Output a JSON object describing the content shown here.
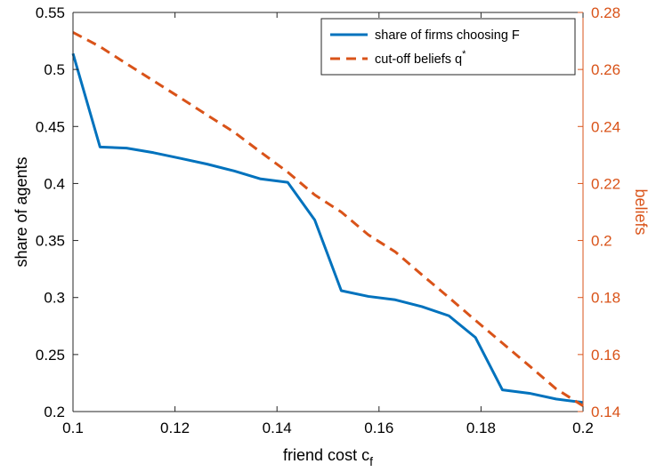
{
  "chart_data": {
    "type": "line",
    "x": [
      0.1,
      0.1053,
      0.1105,
      0.1158,
      0.1211,
      0.1263,
      0.1316,
      0.1368,
      0.1421,
      0.1474,
      0.1526,
      0.1579,
      0.1632,
      0.1684,
      0.1737,
      0.1789,
      0.1842,
      0.1895,
      0.1947,
      0.2
    ],
    "xlabel": "friend cost c",
    "xlabel_subscript": "f",
    "xlim": [
      0.1,
      0.2
    ],
    "xticks": [
      0.1,
      0.12,
      0.14,
      0.16,
      0.18,
      0.2
    ],
    "xtick_labels": [
      "0.1",
      "0.12",
      "0.14",
      "0.16",
      "0.18",
      "0.2"
    ],
    "left_axis": {
      "label": "share of agents",
      "ylim": [
        0.2,
        0.55
      ],
      "ticks": [
        0.2,
        0.25,
        0.3,
        0.35,
        0.4,
        0.45,
        0.5,
        0.55
      ],
      "tick_labels": [
        "0.2",
        "0.25",
        "0.3",
        "0.35",
        "0.4",
        "0.45",
        "0.5",
        "0.55"
      ],
      "color": "#000000"
    },
    "right_axis": {
      "label": "beliefs",
      "ylim": [
        0.14,
        0.28
      ],
      "ticks": [
        0.14,
        0.16,
        0.18,
        0.2,
        0.22,
        0.24,
        0.26,
        0.28
      ],
      "tick_labels": [
        "0.14",
        "0.16",
        "0.18",
        "0.2",
        "0.22",
        "0.24",
        "0.26",
        "0.28"
      ],
      "color": "#D95319"
    },
    "series": [
      {
        "name": "share of firms choosing F",
        "axis": "left",
        "style": "solid",
        "color": "#0072BD",
        "values": [
          0.514,
          0.432,
          0.431,
          0.427,
          0.422,
          0.417,
          0.411,
          0.404,
          0.401,
          0.368,
          0.306,
          0.301,
          0.298,
          0.292,
          0.284,
          0.265,
          0.219,
          0.216,
          0.211,
          0.208
        ]
      },
      {
        "name": "cut-off beliefs q",
        "name_superscript": "*",
        "axis": "right",
        "style": "dashed",
        "color": "#D95319",
        "values": [
          0.273,
          0.268,
          0.262,
          0.256,
          0.25,
          0.244,
          0.238,
          0.231,
          0.224,
          0.216,
          0.21,
          0.202,
          0.196,
          0.188,
          0.18,
          0.172,
          0.164,
          0.156,
          0.148,
          0.142
        ]
      }
    ],
    "legend_position": "top-right",
    "grid": false,
    "axes_color": "#262626"
  }
}
